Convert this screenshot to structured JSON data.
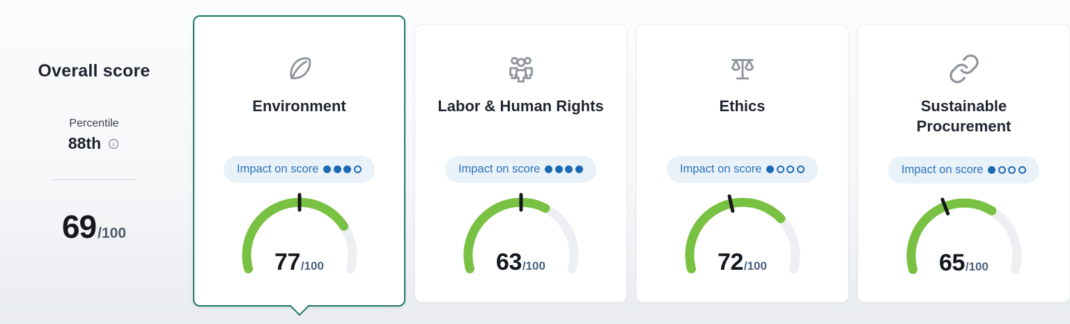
{
  "overall": {
    "title": "Overall score",
    "percentile_label": "Percentile",
    "percentile_value": "88th",
    "score": "69",
    "score_suffix": "/100"
  },
  "cards": [
    {
      "name": "environment",
      "title": "Environment",
      "icon": "leaf-icon",
      "impact_label": "Impact on score",
      "impact": {
        "filled": 3,
        "total": 4
      },
      "score": "77",
      "score_suffix": "/100",
      "gauge": {
        "value": 77,
        "max": 100,
        "marker": 50
      },
      "selected": true
    },
    {
      "name": "labor-human-rights",
      "title": "Labor & Human Rights",
      "icon": "people-icon",
      "impact_label": "Impact on score",
      "impact": {
        "filled": 4,
        "total": 4
      },
      "score": "63",
      "score_suffix": "/100",
      "gauge": {
        "value": 63,
        "max": 100,
        "marker": 50
      },
      "selected": false
    },
    {
      "name": "ethics",
      "title": "Ethics",
      "icon": "scales-icon",
      "impact_label": "Impact on score",
      "impact": {
        "filled": 1,
        "total": 4
      },
      "score": "72",
      "score_suffix": "/100",
      "gauge": {
        "value": 72,
        "max": 100,
        "marker": 44
      },
      "selected": false
    },
    {
      "name": "sustainable-procurement",
      "title": "Sustainable Procurement",
      "icon": "link-icon",
      "impact_label": "Impact on score",
      "impact": {
        "filled": 1,
        "total": 4
      },
      "score": "65",
      "score_suffix": "/100",
      "gauge": {
        "value": 65,
        "max": 100,
        "marker": 40
      },
      "selected": false
    }
  ],
  "colors": {
    "accent_green": "#79c143",
    "gauge_track": "#edeff2",
    "gauge_tick": "#16181c",
    "selected_border": "#1d7468",
    "pill_bg": "#e9f1f9",
    "pill_text": "#2d73b8",
    "dot_blue": "#1a6ab4"
  }
}
